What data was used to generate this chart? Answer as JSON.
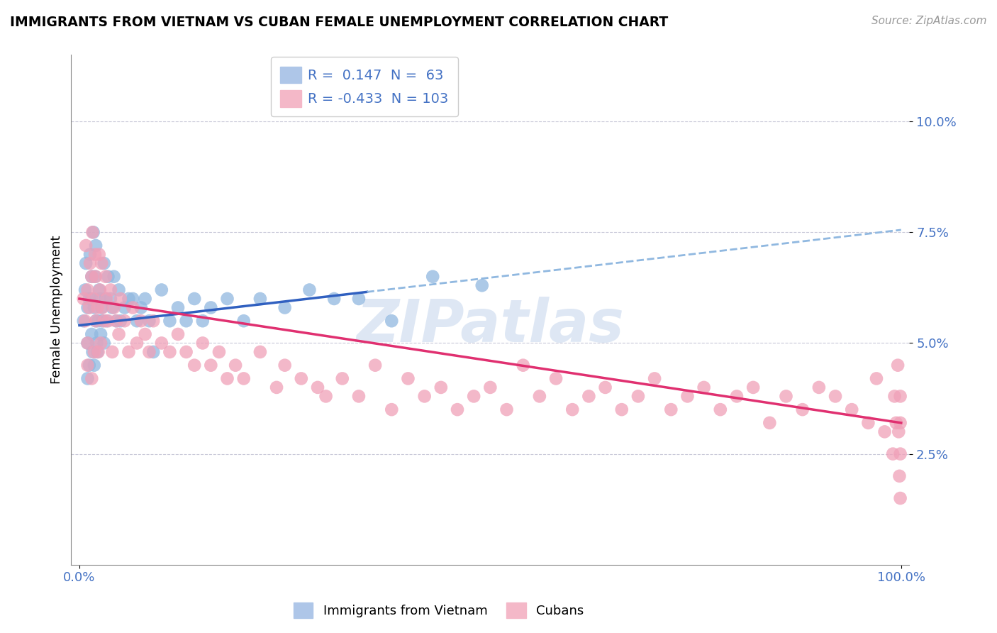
{
  "title": "IMMIGRANTS FROM VIETNAM VS CUBAN FEMALE UNEMPLOYMENT CORRELATION CHART",
  "source": "Source: ZipAtlas.com",
  "ylabel": "Female Unemployment",
  "vietnam_R": 0.147,
  "vietnam_N": 63,
  "cuban_R": -0.433,
  "cuban_N": 103,
  "vietnam_color": "#90b8e0",
  "cuban_color": "#f0a0b8",
  "vietnam_line_color": "#3060c0",
  "cuban_line_color": "#e03070",
  "dashed_line_color": "#90b8e0",
  "watermark_color": "#c8d8ee",
  "background_color": "#ffffff",
  "grid_color": "#c8c8d8",
  "yticks": [
    0.025,
    0.05,
    0.075,
    0.1
  ],
  "ytick_labels": [
    "2.5%",
    "5.0%",
    "7.5%",
    "10.0%"
  ],
  "tick_color": "#4472c4",
  "vietnam_x": [
    0.005,
    0.007,
    0.008,
    0.01,
    0.01,
    0.01,
    0.012,
    0.012,
    0.013,
    0.015,
    0.015,
    0.015,
    0.016,
    0.017,
    0.018,
    0.018,
    0.019,
    0.02,
    0.02,
    0.021,
    0.022,
    0.023,
    0.024,
    0.025,
    0.026,
    0.027,
    0.028,
    0.03,
    0.03,
    0.032,
    0.033,
    0.035,
    0.038,
    0.04,
    0.042,
    0.045,
    0.048,
    0.05,
    0.055,
    0.06,
    0.065,
    0.07,
    0.075,
    0.08,
    0.085,
    0.09,
    0.1,
    0.11,
    0.12,
    0.13,
    0.14,
    0.15,
    0.16,
    0.18,
    0.2,
    0.22,
    0.25,
    0.28,
    0.31,
    0.34,
    0.38,
    0.43,
    0.49
  ],
  "vietnam_y": [
    0.055,
    0.062,
    0.068,
    0.05,
    0.058,
    0.042,
    0.06,
    0.045,
    0.07,
    0.065,
    0.06,
    0.052,
    0.048,
    0.075,
    0.058,
    0.045,
    0.065,
    0.072,
    0.055,
    0.05,
    0.048,
    0.055,
    0.062,
    0.06,
    0.052,
    0.058,
    0.055,
    0.068,
    0.05,
    0.06,
    0.055,
    0.065,
    0.06,
    0.058,
    0.065,
    0.055,
    0.062,
    0.055,
    0.058,
    0.06,
    0.06,
    0.055,
    0.058,
    0.06,
    0.055,
    0.048,
    0.062,
    0.055,
    0.058,
    0.055,
    0.06,
    0.055,
    0.058,
    0.06,
    0.055,
    0.06,
    0.058,
    0.062,
    0.06,
    0.06,
    0.055,
    0.065,
    0.063
  ],
  "cuban_x": [
    0.005,
    0.007,
    0.008,
    0.01,
    0.01,
    0.01,
    0.012,
    0.013,
    0.015,
    0.015,
    0.016,
    0.017,
    0.018,
    0.019,
    0.02,
    0.02,
    0.022,
    0.023,
    0.024,
    0.025,
    0.026,
    0.027,
    0.028,
    0.03,
    0.032,
    0.033,
    0.035,
    0.038,
    0.04,
    0.042,
    0.045,
    0.048,
    0.05,
    0.055,
    0.06,
    0.065,
    0.07,
    0.075,
    0.08,
    0.085,
    0.09,
    0.1,
    0.11,
    0.12,
    0.13,
    0.14,
    0.15,
    0.16,
    0.17,
    0.18,
    0.19,
    0.2,
    0.22,
    0.24,
    0.25,
    0.27,
    0.29,
    0.3,
    0.32,
    0.34,
    0.36,
    0.38,
    0.4,
    0.42,
    0.44,
    0.46,
    0.48,
    0.5,
    0.52,
    0.54,
    0.56,
    0.58,
    0.6,
    0.62,
    0.64,
    0.66,
    0.68,
    0.7,
    0.72,
    0.74,
    0.76,
    0.78,
    0.8,
    0.82,
    0.84,
    0.86,
    0.88,
    0.9,
    0.92,
    0.94,
    0.96,
    0.97,
    0.98,
    0.99,
    0.992,
    0.994,
    0.996,
    0.997,
    0.998,
    0.999,
    0.999,
    0.999,
    0.999
  ],
  "cuban_y": [
    0.06,
    0.055,
    0.072,
    0.05,
    0.062,
    0.045,
    0.058,
    0.068,
    0.042,
    0.065,
    0.075,
    0.06,
    0.048,
    0.07,
    0.055,
    0.065,
    0.058,
    0.048,
    0.07,
    0.062,
    0.05,
    0.068,
    0.058,
    0.055,
    0.065,
    0.06,
    0.055,
    0.062,
    0.048,
    0.058,
    0.055,
    0.052,
    0.06,
    0.055,
    0.048,
    0.058,
    0.05,
    0.055,
    0.052,
    0.048,
    0.055,
    0.05,
    0.048,
    0.052,
    0.048,
    0.045,
    0.05,
    0.045,
    0.048,
    0.042,
    0.045,
    0.042,
    0.048,
    0.04,
    0.045,
    0.042,
    0.04,
    0.038,
    0.042,
    0.038,
    0.045,
    0.035,
    0.042,
    0.038,
    0.04,
    0.035,
    0.038,
    0.04,
    0.035,
    0.045,
    0.038,
    0.042,
    0.035,
    0.038,
    0.04,
    0.035,
    0.038,
    0.042,
    0.035,
    0.038,
    0.04,
    0.035,
    0.038,
    0.04,
    0.032,
    0.038,
    0.035,
    0.04,
    0.038,
    0.035,
    0.032,
    0.042,
    0.03,
    0.025,
    0.038,
    0.032,
    0.045,
    0.03,
    0.02,
    0.032,
    0.025,
    0.038,
    0.015
  ]
}
